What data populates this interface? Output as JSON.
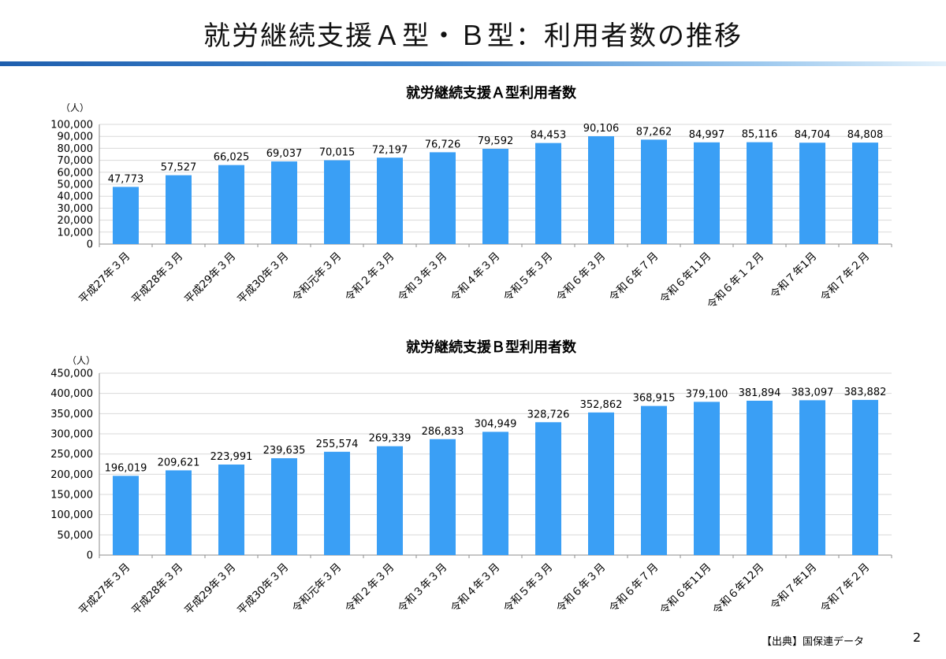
{
  "page": {
    "title": "就労継続支援Ａ型・Ｂ型：利用者数の推移",
    "source": "【出典】国保連データ",
    "page_number": "2",
    "accent_color": "#3a9ff5",
    "rule_color": "#1f5fae"
  },
  "chart_data": [
    {
      "type": "bar",
      "title": "就労継続支援Ａ型利用者数",
      "unit": "（人）",
      "categories": [
        "平成27年３月",
        "平成28年３月",
        "平成29年３月",
        "平成30年３月",
        "令和元年３月",
        "令和２年３月",
        "令和３年３月",
        "令和４年３月",
        "令和５年３月",
        "令和６年３月",
        "令和６年７月",
        "令和６年11月",
        "令和６年１２月",
        "令和７年1月",
        "令和７年２月"
      ],
      "values": [
        47773,
        57527,
        66025,
        69037,
        70015,
        72197,
        76726,
        79592,
        84453,
        90106,
        87262,
        84997,
        85116,
        84704,
        84808
      ],
      "labels": [
        "47,773",
        "57,527",
        "66,025",
        "69,037",
        "70,015",
        "72,197",
        "76,726",
        "79,592",
        "84,453",
        "90,106",
        "87,262",
        "84,997",
        "85,116",
        "84,704",
        "84,808"
      ],
      "ylim": [
        0,
        100000
      ],
      "yticks": [
        "0",
        "10,000",
        "20,000",
        "30,000",
        "40,000",
        "50,000",
        "60,000",
        "70,000",
        "80,000",
        "90,000",
        "100,000"
      ],
      "grid": true,
      "color": "#3a9ff5"
    },
    {
      "type": "bar",
      "title": "就労継続支援Ｂ型利用者数",
      "unit": "（人）",
      "categories": [
        "平成27年３月",
        "平成28年３月",
        "平成29年３月",
        "平成30年３月",
        "令和元年３月",
        "令和２年３月",
        "令和３年３月",
        "令和４年３月",
        "令和５年３月",
        "令和６年３月",
        "令和６年７月",
        "令和６年11月",
        "令和６年12月",
        "令和７年1月",
        "令和７年２月"
      ],
      "values": [
        196019,
        209621,
        223991,
        239635,
        255574,
        269339,
        286833,
        304949,
        328726,
        352862,
        368915,
        379100,
        381894,
        383097,
        383882
      ],
      "labels": [
        "196,019",
        "209,621",
        "223,991",
        "239,635",
        "255,574",
        "269,339",
        "286,833",
        "304,949",
        "328,726",
        "352,862",
        "368,915",
        "379,100",
        "381,894",
        "383,097",
        "383,882"
      ],
      "ylim": [
        0,
        450000
      ],
      "yticks": [
        "0",
        "50,000",
        "100,000",
        "150,000",
        "200,000",
        "250,000",
        "300,000",
        "350,000",
        "400,000",
        "450,000"
      ],
      "grid": true,
      "color": "#3a9ff5"
    }
  ]
}
